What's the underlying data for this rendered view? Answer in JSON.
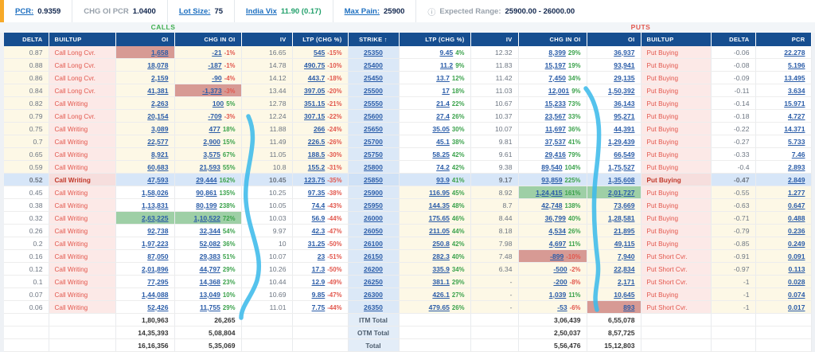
{
  "topbar": {
    "pcr_label": "PCR:",
    "pcr_value": "0.9359",
    "chg_oi_pcr_label": "CHG OI PCR",
    "chg_oi_pcr_value": "1.0400",
    "lot_size_label": "Lot Size:",
    "lot_size_value": "75",
    "india_vix_label": "India Vix",
    "india_vix_value": "11.90 (0.17)",
    "max_pain_label": "Max Pain:",
    "max_pain_value": "25900",
    "info_icon": "ⓘ",
    "expected_range_label": "Expected Range:",
    "expected_range_value": "25900.00 - 26000.00"
  },
  "sections": {
    "calls": "CALLS",
    "puts": "PUTS"
  },
  "headers": [
    "DELTA",
    "BUILTUP",
    "OI",
    "CHG IN OI",
    "IV",
    "LTP (CHG %)",
    "Strike ↑",
    "LTP (CHG %)",
    "IV",
    "CHG IN OI",
    "OI",
    "BUILTUP",
    "DELTA",
    "PCR"
  ],
  "rows": [
    {
      "strike": "25350",
      "call_zone": "cream",
      "put_zone": "white",
      "atm": false,
      "call": {
        "delta": "0.87",
        "builtup": "Call Long Cvr.",
        "oi": "1,658",
        "chg": "-21",
        "chg_pct": "-1%",
        "iv": "16.65",
        "ltp": "545",
        "ltp_pct": "-15%"
      },
      "put": {
        "ltp": "9.45",
        "ltp_pct": "4%",
        "iv": "12.32",
        "chg": "8,399",
        "chg_pct": "29%",
        "oi": "36,937",
        "builtup": "Put Buying",
        "delta": "-0.06",
        "pcr": "22.278"
      },
      "hl": {
        "call_oi": "rose"
      }
    },
    {
      "strike": "25400",
      "call_zone": "cream",
      "put_zone": "white",
      "atm": false,
      "call": {
        "delta": "0.88",
        "builtup": "Call Long Cvr.",
        "oi": "18,078",
        "chg": "-187",
        "chg_pct": "-1%",
        "iv": "14.78",
        "ltp": "490.75",
        "ltp_pct": "-10%"
      },
      "put": {
        "ltp": "11.2",
        "ltp_pct": "9%",
        "iv": "11.83",
        "chg": "15,197",
        "chg_pct": "19%",
        "oi": "93,941",
        "builtup": "Put Buying",
        "delta": "-0.08",
        "pcr": "5.196"
      },
      "hl": {}
    },
    {
      "strike": "25450",
      "call_zone": "cream",
      "put_zone": "white",
      "atm": false,
      "call": {
        "delta": "0.86",
        "builtup": "Call Long Cvr.",
        "oi": "2,159",
        "chg": "-90",
        "chg_pct": "-4%",
        "iv": "14.12",
        "ltp": "443.7",
        "ltp_pct": "-18%"
      },
      "put": {
        "ltp": "13.7",
        "ltp_pct": "12%",
        "iv": "11.42",
        "chg": "7,450",
        "chg_pct": "34%",
        "oi": "29,135",
        "builtup": "Put Buying",
        "delta": "-0.09",
        "pcr": "13.495"
      },
      "hl": {}
    },
    {
      "strike": "25500",
      "call_zone": "cream",
      "put_zone": "white",
      "atm": false,
      "call": {
        "delta": "0.84",
        "builtup": "Call Long Cvr.",
        "oi": "41,381",
        "chg": "-1,373",
        "chg_pct": "-3%",
        "iv": "13.44",
        "ltp": "397.05",
        "ltp_pct": "-20%"
      },
      "put": {
        "ltp": "17",
        "ltp_pct": "18%",
        "iv": "11.03",
        "chg": "12,001",
        "chg_pct": "9%",
        "oi": "1,50,392",
        "builtup": "Put Buying",
        "delta": "-0.11",
        "pcr": "3.634"
      },
      "hl": {
        "call_chg": "rose"
      }
    },
    {
      "strike": "25550",
      "call_zone": "cream",
      "put_zone": "white",
      "atm": false,
      "call": {
        "delta": "0.82",
        "builtup": "Call Writing",
        "oi": "2,263",
        "chg": "100",
        "chg_pct": "5%",
        "iv": "12.78",
        "ltp": "351.15",
        "ltp_pct": "-21%"
      },
      "put": {
        "ltp": "21.4",
        "ltp_pct": "22%",
        "iv": "10.67",
        "chg": "15,233",
        "chg_pct": "73%",
        "oi": "36,143",
        "builtup": "Put Buying",
        "delta": "-0.14",
        "pcr": "15.971"
      },
      "hl": {}
    },
    {
      "strike": "25600",
      "call_zone": "cream",
      "put_zone": "white",
      "atm": false,
      "call": {
        "delta": "0.79",
        "builtup": "Call Long Cvr.",
        "oi": "20,154",
        "chg": "-709",
        "chg_pct": "-3%",
        "iv": "12.24",
        "ltp": "307.15",
        "ltp_pct": "-22%"
      },
      "put": {
        "ltp": "27.4",
        "ltp_pct": "26%",
        "iv": "10.37",
        "chg": "23,567",
        "chg_pct": "33%",
        "oi": "95,271",
        "builtup": "Put Buying",
        "delta": "-0.18",
        "pcr": "4.727"
      },
      "hl": {}
    },
    {
      "strike": "25650",
      "call_zone": "cream",
      "put_zone": "white",
      "atm": false,
      "call": {
        "delta": "0.75",
        "builtup": "Call Writing",
        "oi": "3,089",
        "chg": "477",
        "chg_pct": "18%",
        "iv": "11.88",
        "ltp": "266",
        "ltp_pct": "-24%"
      },
      "put": {
        "ltp": "35.05",
        "ltp_pct": "30%",
        "iv": "10.07",
        "chg": "11,697",
        "chg_pct": "36%",
        "oi": "44,391",
        "builtup": "Put Buying",
        "delta": "-0.22",
        "pcr": "14.371"
      },
      "hl": {}
    },
    {
      "strike": "25700",
      "call_zone": "cream",
      "put_zone": "white",
      "atm": false,
      "call": {
        "delta": "0.7",
        "builtup": "Call Writing",
        "oi": "22,577",
        "chg": "2,900",
        "chg_pct": "15%",
        "iv": "11.49",
        "ltp": "226.5",
        "ltp_pct": "-26%"
      },
      "put": {
        "ltp": "45.1",
        "ltp_pct": "38%",
        "iv": "9.81",
        "chg": "37,537",
        "chg_pct": "41%",
        "oi": "1,29,439",
        "builtup": "Put Buying",
        "delta": "-0.27",
        "pcr": "5.733"
      },
      "hl": {}
    },
    {
      "strike": "25750",
      "call_zone": "cream",
      "put_zone": "white",
      "atm": false,
      "call": {
        "delta": "0.65",
        "builtup": "Call Writing",
        "oi": "8,921",
        "chg": "3,575",
        "chg_pct": "67%",
        "iv": "11.05",
        "ltp": "188.5",
        "ltp_pct": "-30%"
      },
      "put": {
        "ltp": "58.25",
        "ltp_pct": "42%",
        "iv": "9.61",
        "chg": "29,416",
        "chg_pct": "79%",
        "oi": "66,549",
        "builtup": "Put Buying",
        "delta": "-0.33",
        "pcr": "7.46"
      },
      "hl": {}
    },
    {
      "strike": "25800",
      "call_zone": "cream",
      "put_zone": "white",
      "atm": false,
      "call": {
        "delta": "0.59",
        "builtup": "Call Writing",
        "oi": "60,683",
        "chg": "21,593",
        "chg_pct": "55%",
        "iv": "10.8",
        "ltp": "155.2",
        "ltp_pct": "-31%"
      },
      "put": {
        "ltp": "74.2",
        "ltp_pct": "42%",
        "iv": "9.38",
        "chg": "89,540",
        "chg_pct": "104%",
        "oi": "1,75,527",
        "builtup": "Put Buying",
        "delta": "-0.4",
        "pcr": "2.893"
      },
      "hl": {}
    },
    {
      "strike": "25850",
      "call_zone": "atm",
      "put_zone": "atm",
      "atm": true,
      "call": {
        "delta": "0.52",
        "builtup": "Call Writing",
        "oi": "47,593",
        "chg": "29,444",
        "chg_pct": "162%",
        "iv": "10.45",
        "ltp": "123.75",
        "ltp_pct": "-35%"
      },
      "put": {
        "ltp": "93.9",
        "ltp_pct": "41%",
        "iv": "9.17",
        "chg": "93,859",
        "chg_pct": "225%",
        "oi": "1,35,608",
        "builtup": "Put Buying",
        "delta": "-0.47",
        "pcr": "2.849"
      },
      "hl": {}
    },
    {
      "strike": "25900",
      "call_zone": "white",
      "put_zone": "cream",
      "atm": false,
      "call": {
        "delta": "0.45",
        "builtup": "Call Writing",
        "oi": "1,58,026",
        "chg": "90,861",
        "chg_pct": "135%",
        "iv": "10.25",
        "ltp": "97.35",
        "ltp_pct": "-38%"
      },
      "put": {
        "ltp": "116.95",
        "ltp_pct": "45%",
        "iv": "8.92",
        "chg": "1,24,415",
        "chg_pct": "161%",
        "oi": "2,01,727",
        "builtup": "Put Buying",
        "delta": "-0.55",
        "pcr": "1.277"
      },
      "hl": {
        "put_chg": "green",
        "put_oi": "green"
      }
    },
    {
      "strike": "25950",
      "call_zone": "white",
      "put_zone": "cream",
      "atm": false,
      "call": {
        "delta": "0.38",
        "builtup": "Call Writing",
        "oi": "1,13,831",
        "chg": "80,199",
        "chg_pct": "238%",
        "iv": "10.05",
        "ltp": "74.4",
        "ltp_pct": "-43%"
      },
      "put": {
        "ltp": "144.35",
        "ltp_pct": "48%",
        "iv": "8.7",
        "chg": "42,748",
        "chg_pct": "138%",
        "oi": "73,669",
        "builtup": "Put Buying",
        "delta": "-0.63",
        "pcr": "0.647"
      },
      "hl": {}
    },
    {
      "strike": "26000",
      "call_zone": "white",
      "put_zone": "cream",
      "atm": false,
      "call": {
        "delta": "0.32",
        "builtup": "Call Writing",
        "oi": "2,63,225",
        "chg": "1,10,522",
        "chg_pct": "72%",
        "iv": "10.03",
        "ltp": "56.9",
        "ltp_pct": "-44%"
      },
      "put": {
        "ltp": "175.65",
        "ltp_pct": "46%",
        "iv": "8.44",
        "chg": "36,799",
        "chg_pct": "40%",
        "oi": "1,28,581",
        "builtup": "Put Buying",
        "delta": "-0.71",
        "pcr": "0.488"
      },
      "hl": {
        "call_oi": "green",
        "call_chg": "green"
      }
    },
    {
      "strike": "26050",
      "call_zone": "white",
      "put_zone": "cream",
      "atm": false,
      "call": {
        "delta": "0.26",
        "builtup": "Call Writing",
        "oi": "92,738",
        "chg": "32,344",
        "chg_pct": "54%",
        "iv": "9.97",
        "ltp": "42.3",
        "ltp_pct": "-47%"
      },
      "put": {
        "ltp": "211.05",
        "ltp_pct": "44%",
        "iv": "8.18",
        "chg": "4,534",
        "chg_pct": "26%",
        "oi": "21,895",
        "builtup": "Put Buying",
        "delta": "-0.79",
        "pcr": "0.236"
      },
      "hl": {}
    },
    {
      "strike": "26100",
      "call_zone": "white",
      "put_zone": "cream",
      "atm": false,
      "call": {
        "delta": "0.2",
        "builtup": "Call Writing",
        "oi": "1,97,223",
        "chg": "52,082",
        "chg_pct": "36%",
        "iv": "10",
        "ltp": "31.25",
        "ltp_pct": "-50%"
      },
      "put": {
        "ltp": "250.8",
        "ltp_pct": "42%",
        "iv": "7.98",
        "chg": "4,697",
        "chg_pct": "11%",
        "oi": "49,115",
        "builtup": "Put Buying",
        "delta": "-0.85",
        "pcr": "0.249"
      },
      "hl": {}
    },
    {
      "strike": "26150",
      "call_zone": "white",
      "put_zone": "cream",
      "atm": false,
      "call": {
        "delta": "0.16",
        "builtup": "Call Writing",
        "oi": "87,050",
        "chg": "29,383",
        "chg_pct": "51%",
        "iv": "10.07",
        "ltp": "23",
        "ltp_pct": "-51%"
      },
      "put": {
        "ltp": "282.3",
        "ltp_pct": "40%",
        "iv": "7.48",
        "chg": "-899",
        "chg_pct": "-10%",
        "oi": "7,940",
        "builtup": "Put Short Cvr.",
        "delta": "-0.91",
        "pcr": "0.091"
      },
      "hl": {
        "put_chg": "rose"
      }
    },
    {
      "strike": "26200",
      "call_zone": "white",
      "put_zone": "cream",
      "atm": false,
      "call": {
        "delta": "0.12",
        "builtup": "Call Writing",
        "oi": "2,01,896",
        "chg": "44,797",
        "chg_pct": "29%",
        "iv": "10.26",
        "ltp": "17.3",
        "ltp_pct": "-50%"
      },
      "put": {
        "ltp": "335.9",
        "ltp_pct": "34%",
        "iv": "6.34",
        "chg": "-500",
        "chg_pct": "-2%",
        "oi": "22,834",
        "builtup": "Put Short Cvr.",
        "delta": "-0.97",
        "pcr": "0.113"
      },
      "hl": {}
    },
    {
      "strike": "26250",
      "call_zone": "white",
      "put_zone": "cream",
      "atm": false,
      "call": {
        "delta": "0.1",
        "builtup": "Call Writing",
        "oi": "77,295",
        "chg": "14,368",
        "chg_pct": "23%",
        "iv": "10.44",
        "ltp": "12.9",
        "ltp_pct": "-49%"
      },
      "put": {
        "ltp": "381.1",
        "ltp_pct": "29%",
        "iv": "-",
        "chg": "-200",
        "chg_pct": "-8%",
        "oi": "2,171",
        "builtup": "Put Short Cvr.",
        "delta": "-1",
        "pcr": "0.028"
      },
      "hl": {}
    },
    {
      "strike": "26300",
      "call_zone": "white",
      "put_zone": "cream",
      "atm": false,
      "call": {
        "delta": "0.07",
        "builtup": "Call Writing",
        "oi": "1,44,088",
        "chg": "13,049",
        "chg_pct": "10%",
        "iv": "10.69",
        "ltp": "9.85",
        "ltp_pct": "-47%"
      },
      "put": {
        "ltp": "426.1",
        "ltp_pct": "27%",
        "iv": "-",
        "chg": "1,039",
        "chg_pct": "11%",
        "oi": "10,645",
        "builtup": "Put Buying",
        "delta": "-1",
        "pcr": "0.074"
      },
      "hl": {}
    },
    {
      "strike": "26350",
      "call_zone": "white",
      "put_zone": "cream",
      "atm": false,
      "call": {
        "delta": "0.06",
        "builtup": "Call Writing",
        "oi": "52,426",
        "chg": "11,755",
        "chg_pct": "29%",
        "iv": "11.01",
        "ltp": "7.75",
        "ltp_pct": "-44%"
      },
      "put": {
        "ltp": "479.65",
        "ltp_pct": "26%",
        "iv": "-",
        "chg": "-53",
        "chg_pct": "-6%",
        "oi": "893",
        "builtup": "Put Short Cvr.",
        "delta": "-1",
        "pcr": "0.017"
      },
      "hl": {
        "put_oi": "rose"
      }
    }
  ],
  "totals": [
    {
      "label": "ITM Total",
      "call_oi": "1,80,963",
      "call_chg": "26,265",
      "put_chg": "3,06,439",
      "put_oi": "6,55,078"
    },
    {
      "label": "OTM Total",
      "call_oi": "14,35,393",
      "call_chg": "5,08,804",
      "put_chg": "2,50,037",
      "put_oi": "8,57,725"
    },
    {
      "label": "Total",
      "call_oi": "16,16,356",
      "call_chg": "5,35,069",
      "put_chg": "5,56,476",
      "put_oi": "15,12,803"
    }
  ],
  "annotations": {
    "color": "#3dbbea",
    "paths": [
      "M312,146 C327,178 306,212 309,252 C312,292 332,318 323,352 C317,372 303,384 303,399",
      "M736,111 C757,138 754,176 749,216 C744,256 747,296 751,328 C754,352 744,368 750,389"
    ]
  }
}
